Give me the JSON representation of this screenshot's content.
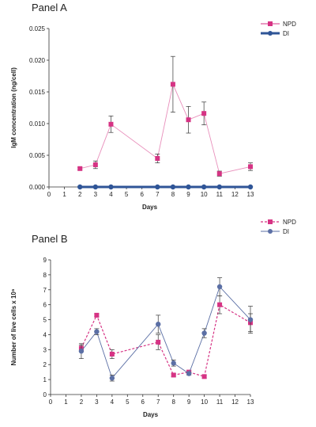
{
  "chart_data": [
    {
      "type": "line",
      "panel_label": "Panel A",
      "xlabel": "Days",
      "ylabel": "IgM concentration (ng/cell)",
      "xlim": [
        0,
        13
      ],
      "ylim": [
        0,
        0.025
      ],
      "x_ticks": [
        "0",
        "1",
        "2",
        "3",
        "4",
        "5",
        "6",
        "7",
        "8",
        "9",
        "10",
        "11",
        "12",
        "13"
      ],
      "y_ticks": [
        "0.000",
        "0.005",
        "0.010",
        "0.015",
        "0.020",
        "0.025"
      ],
      "legend_position": "top-right",
      "series": [
        {
          "name": "NPD",
          "color": "#d63384",
          "marker": "square",
          "line": "solid-light",
          "x": [
            2,
            3,
            4,
            7,
            8,
            9,
            10,
            11,
            13
          ],
          "y": [
            0.0029,
            0.0035,
            0.0099,
            0.0045,
            0.0162,
            0.0106,
            0.0116,
            0.0021,
            0.0032
          ],
          "err": [
            0.0002,
            0.0006,
            0.0013,
            0.0007,
            0.0044,
            0.0021,
            0.0018,
            0.0004,
            0.0006
          ]
        },
        {
          "name": "DI",
          "color": "#2f5597",
          "marker": "circle",
          "line": "solid-thick",
          "x": [
            2,
            3,
            4,
            7,
            8,
            9,
            10,
            11,
            13
          ],
          "y": [
            0,
            0,
            0,
            0,
            0,
            0,
            0,
            0,
            0
          ],
          "err": [
            0,
            0,
            0,
            0,
            0,
            0,
            0,
            0,
            0
          ]
        }
      ]
    },
    {
      "type": "line",
      "panel_label": "Panel B",
      "xlabel": "Days",
      "ylabel": "Number of live cells x 10⁶",
      "xlim": [
        0,
        13
      ],
      "ylim": [
        0,
        9
      ],
      "x_ticks": [
        "0",
        "1",
        "2",
        "3",
        "4",
        "5",
        "6",
        "7",
        "8",
        "9",
        "10",
        "11",
        "12",
        "13"
      ],
      "y_ticks": [
        "0",
        "1",
        "2",
        "3",
        "4",
        "5",
        "6",
        "7",
        "8",
        "9"
      ],
      "legend_position": "top-right",
      "series": [
        {
          "name": "NPD",
          "color": "#d63384",
          "marker": "square",
          "line": "dashed",
          "x": [
            2,
            3,
            4,
            7,
            8,
            9,
            10,
            11,
            13
          ],
          "y": [
            3.1,
            5.3,
            2.7,
            3.5,
            1.3,
            1.5,
            1.2,
            6.0,
            4.8
          ],
          "err": [
            0.2,
            0.1,
            0.3,
            0.5,
            0.1,
            0.1,
            0.1,
            0.6,
            0.6
          ]
        },
        {
          "name": "DI",
          "color": "#5b6fa5",
          "marker": "circle",
          "line": "solid",
          "x": [
            2,
            3,
            4,
            7,
            8,
            9,
            10,
            11,
            13
          ],
          "y": [
            2.9,
            4.2,
            1.1,
            4.7,
            2.1,
            1.4,
            4.1,
            7.2,
            5.0
          ],
          "err": [
            0.5,
            0.2,
            0.2,
            0.6,
            0.2,
            0.1,
            0.3,
            0.6,
            0.9
          ]
        }
      ]
    }
  ]
}
